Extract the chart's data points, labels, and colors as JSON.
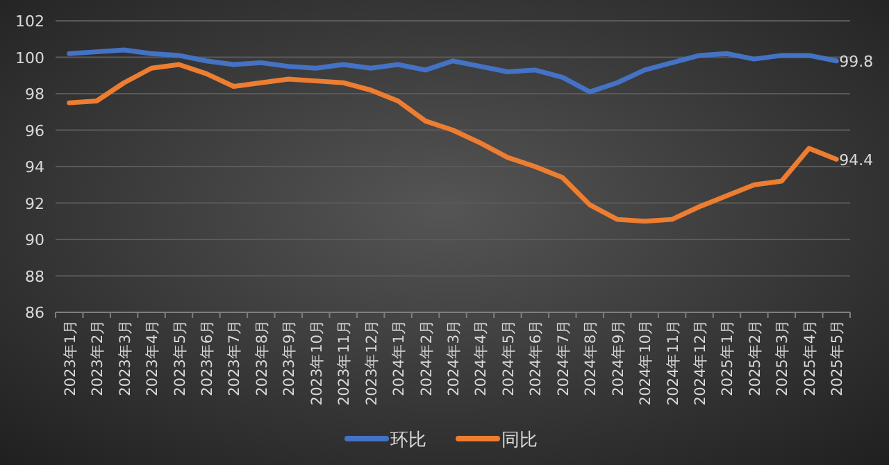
{
  "chart_data": {
    "type": "line",
    "categories": [
      "2023年1月",
      "2023年2月",
      "2023年3月",
      "2023年4月",
      "2023年5月",
      "2023年6月",
      "2023年7月",
      "2023年8月",
      "2023年9月",
      "2023年10月",
      "2023年11月",
      "2023年12月",
      "2024年1月",
      "2024年2月",
      "2024年3月",
      "2024年4月",
      "2024年5月",
      "2024年6月",
      "2024年7月",
      "2024年8月",
      "2024年9月",
      "2024年10月",
      "2024年11月",
      "2024年12月",
      "2025年1月",
      "2025年2月",
      "2025年3月",
      "2025年4月",
      "2025年5月"
    ],
    "series": [
      {
        "name": "环比",
        "color": "#4472c4",
        "values": [
          100.2,
          100.3,
          100.4,
          100.2,
          100.1,
          99.8,
          99.6,
          99.7,
          99.5,
          99.4,
          99.6,
          99.4,
          99.6,
          99.3,
          99.8,
          99.5,
          99.2,
          99.3,
          98.9,
          98.1,
          98.6,
          99.3,
          99.7,
          100.1,
          100.2,
          99.9,
          100.1,
          100.1,
          99.8
        ],
        "value_labels": [
          null,
          null,
          null,
          null,
          null,
          null,
          null,
          null,
          null,
          null,
          null,
          null,
          null,
          null,
          null,
          null,
          null,
          null,
          null,
          null,
          null,
          null,
          null,
          null,
          null,
          null,
          null,
          null,
          "99.8"
        ]
      },
      {
        "name": "同比",
        "color": "#ed7d31",
        "values": [
          97.5,
          97.6,
          98.6,
          99.4,
          99.6,
          99.1,
          98.4,
          98.6,
          98.8,
          98.7,
          98.6,
          98.2,
          97.6,
          96.5,
          96.0,
          95.3,
          94.5,
          94.0,
          93.4,
          91.9,
          91.1,
          91.0,
          91.1,
          91.8,
          92.4,
          93.0,
          93.2,
          95.0,
          94.4
        ],
        "value_labels": [
          null,
          null,
          null,
          null,
          null,
          null,
          null,
          null,
          null,
          null,
          null,
          null,
          null,
          null,
          null,
          null,
          null,
          null,
          null,
          null,
          null,
          null,
          null,
          null,
          null,
          null,
          null,
          null,
          "94.4"
        ]
      }
    ],
    "ylim": [
      86,
      102
    ],
    "yticks": [
      86,
      88,
      90,
      92,
      94,
      96,
      98,
      100,
      102
    ],
    "grid": "y",
    "legend": "bottom",
    "marker": "none",
    "line_style": "solid"
  }
}
